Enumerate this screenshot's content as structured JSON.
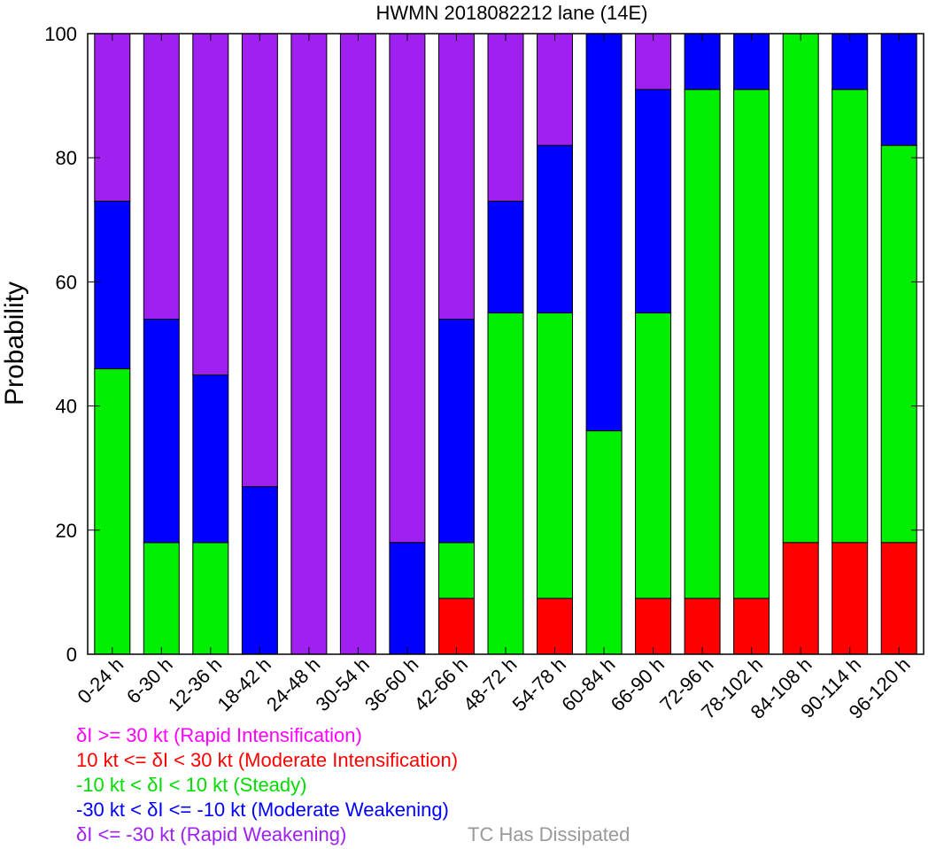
{
  "chart_data": {
    "type": "bar",
    "stacked": true,
    "title": "HWMN 2018082212 lane (14E)",
    "xlabel": "",
    "ylabel": "Probability",
    "ylim": [
      0,
      100
    ],
    "yticks": [
      0,
      20,
      40,
      60,
      80,
      100
    ],
    "grid": false,
    "legend_position": "bottom-left, below axis",
    "categories": [
      "0-24 h",
      "6-30 h",
      "12-36 h",
      "18-42 h",
      "24-48 h",
      "30-54 h",
      "36-60 h",
      "42-66 h",
      "48-72 h",
      "54-78 h",
      "60-84 h",
      "66-90 h",
      "72-96 h",
      "78-102 h",
      "84-108 h",
      "90-114 h",
      "96-120 h"
    ],
    "series": [
      {
        "name": "δI >= 30 kt (Rapid Intensification)",
        "color": "#ff00ff",
        "values": [
          0,
          0,
          0,
          0,
          0,
          0,
          0,
          0,
          0,
          0,
          0,
          0,
          0,
          0,
          0,
          0,
          0
        ]
      },
      {
        "name": "10 kt <= δI < 30 kt (Moderate Intensification)",
        "color": "#ff0000",
        "values": [
          0,
          0,
          0,
          0,
          0,
          0,
          0,
          9,
          0,
          9,
          0,
          9,
          9,
          9,
          18,
          18,
          18
        ]
      },
      {
        "name": "-10 kt < δI < 10 kt (Steady)",
        "color": "#00ee00",
        "values": [
          46,
          18,
          18,
          0,
          0,
          0,
          0,
          9,
          55,
          46,
          36,
          46,
          82,
          82,
          82,
          73,
          64
        ]
      },
      {
        "name": "-30 kt < δI <= -10 kt (Moderate Weakening)",
        "color": "#0000ff",
        "values": [
          27,
          36,
          27,
          27,
          0,
          0,
          18,
          36,
          18,
          27,
          64,
          36,
          9,
          9,
          0,
          9,
          18
        ]
      },
      {
        "name": "δI <= -30 kt (Rapid Weakening)",
        "color": "#a020f0",
        "values": [
          27,
          46,
          55,
          73,
          100,
          100,
          82,
          46,
          27,
          18,
          0,
          9,
          0,
          0,
          0,
          0,
          0
        ]
      }
    ],
    "extra_legend": {
      "label": "TC Has Dissipated",
      "color": "#999999"
    }
  }
}
